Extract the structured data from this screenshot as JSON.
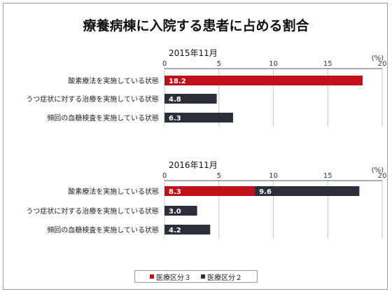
{
  "title": "療養病棟に入院する患者に占める割合",
  "colors": {
    "series_3": "#c0111b",
    "series_2": "#2b2f3a",
    "grid": "#c8c8c8",
    "axis": "#555555"
  },
  "legend": {
    "items": [
      "医療区分３",
      "医療区分２"
    ]
  },
  "chart_data": [
    {
      "type": "bar",
      "orientation": "horizontal",
      "stacked": true,
      "title": "2015年11月",
      "unit": "(%)",
      "xlim": [
        0,
        20
      ],
      "ticks": [
        0,
        5,
        10,
        15,
        20
      ],
      "categories": [
        "酸素療法を実施している状態",
        "うつ症状に対する治療を実施している状態",
        "頻回の血糖検査を実施している状態"
      ],
      "series": [
        {
          "name": "医療区分３",
          "values": [
            18.2,
            null,
            null
          ]
        },
        {
          "name": "医療区分２",
          "values": [
            null,
            4.8,
            6.3
          ]
        }
      ]
    },
    {
      "type": "bar",
      "orientation": "horizontal",
      "stacked": true,
      "title": "2016年11月",
      "unit": "(%)",
      "xlim": [
        0,
        20
      ],
      "ticks": [
        0,
        5,
        10,
        15,
        20
      ],
      "categories": [
        "酸素療法を実施している状態",
        "うつ症状に対する治療を実施している状態",
        "頻回の血糖検査を実施している状態"
      ],
      "series": [
        {
          "name": "医療区分３",
          "values": [
            8.3,
            null,
            null
          ]
        },
        {
          "name": "医療区分２",
          "values": [
            9.6,
            3.0,
            4.2
          ]
        }
      ]
    }
  ]
}
